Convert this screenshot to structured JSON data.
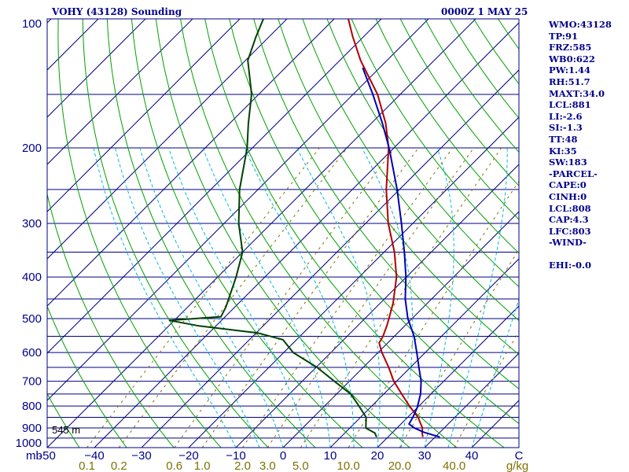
{
  "header": {
    "title": "VOHY (43128) Sounding",
    "valid_time": "0000Z  1 MAY 25"
  },
  "station_height_label": "545 m",
  "indices": [
    "WMO:43128",
    "TP:91",
    "FRZ:585",
    "WB0:622",
    "PW:1.44",
    "RH:51.7",
    "MAXT:34.0",
    "LCL:881",
    "LI:-2.6",
    "SI:-1.3",
    "TT:48",
    "KI:35",
    "SW:183",
    "-PARCEL-",
    "CAPE:0",
    "CINH:0",
    "LCL:808",
    "CAP:4.3",
    "LFC:803",
    "-WIND-",
    "",
    "EHI:-0.0"
  ],
  "colors": {
    "background": "#ffffff",
    "frame": "#000080",
    "isobar": "#000080",
    "isotherm": "#000080",
    "dry_adiabat": "#00a000",
    "moist_adiabat": "#00b8e0",
    "mixing_ratio": "#807000",
    "temperature": "#b00000",
    "dewpoint": "#004000",
    "parcel": "#0000b0",
    "text": "#00008b",
    "mixing_label": "#807000"
  },
  "chart_data": {
    "type": "skew-t log-p",
    "title": "VOHY (43128) Sounding",
    "time": "0000Z  1 MAY 25",
    "pressure_unit": "mb",
    "mixing_ratio_unit": "g/kg",
    "pressure_range": [
      1000,
      100
    ],
    "temperature_range_at_bottom": [
      -50,
      50
    ],
    "pressure_ticks": [
      100,
      200,
      300,
      400,
      500,
      600,
      700,
      800,
      900,
      1000
    ],
    "isobar_levels": [
      100,
      150,
      200,
      250,
      300,
      350,
      400,
      450,
      500,
      550,
      600,
      650,
      700,
      750,
      800,
      850,
      900,
      950,
      1000
    ],
    "temperature_ticks": [
      -50,
      -40,
      -30,
      -20,
      -10,
      0,
      10,
      20,
      30,
      40,
      50
    ],
    "temperature_tick_labels": [
      "-50",
      "−40",
      "−30",
      "−20",
      "−10",
      "0",
      "10",
      "20",
      "30",
      "40",
      "C"
    ],
    "mixing_ratio_ticks": [
      0.1,
      0.2,
      0.6,
      1.0,
      2.0,
      3.0,
      5.0,
      10.0,
      20.0,
      40.0
    ],
    "mixing_ratio_tick_labels": [
      "0.1",
      "0.2",
      "0.6",
      "1.0",
      "2.0",
      "3.0",
      "5.0",
      "10.0",
      "20.0",
      "40.0"
    ],
    "series": [
      {
        "key": "temperature",
        "points": [
          [
            945,
            27.4
          ],
          [
            925,
            26.4
          ],
          [
            900,
            25.4
          ],
          [
            850,
            22.2
          ],
          [
            800,
            18.0
          ],
          [
            750,
            13.8
          ],
          [
            700,
            9.4
          ],
          [
            650,
            5.4
          ],
          [
            600,
            0.8
          ],
          [
            570,
            -1.8
          ],
          [
            550,
            -2.4
          ],
          [
            520,
            -3.8
          ],
          [
            500,
            -4.9
          ],
          [
            460,
            -7.3
          ],
          [
            400,
            -12.1
          ],
          [
            350,
            -17.8
          ],
          [
            300,
            -25.2
          ],
          [
            250,
            -32.8
          ],
          [
            200,
            -41.1
          ],
          [
            175,
            -47.0
          ],
          [
            150,
            -54.8
          ],
          [
            125,
            -65.6
          ],
          [
            110,
            -72.3
          ],
          [
            100,
            -77.0
          ]
        ]
      },
      {
        "key": "dewpoint",
        "points": [
          [
            945,
            17.6
          ],
          [
            925,
            16.4
          ],
          [
            900,
            13.4
          ],
          [
            850,
            11.2
          ],
          [
            800,
            7.3
          ],
          [
            750,
            3.0
          ],
          [
            700,
            -3.2
          ],
          [
            650,
            -9.8
          ],
          [
            600,
            -18.0
          ],
          [
            560,
            -22.9
          ],
          [
            540,
            -29.7
          ],
          [
            520,
            -43.7
          ],
          [
            505,
            -51.0
          ],
          [
            495,
            -40.9
          ],
          [
            470,
            -41.9
          ],
          [
            400,
            -46.1
          ],
          [
            350,
            -50.0
          ],
          [
            300,
            -56.9
          ],
          [
            250,
            -63.9
          ],
          [
            200,
            -71.1
          ],
          [
            175,
            -76.1
          ],
          [
            150,
            -81.5
          ],
          [
            125,
            -89.5
          ],
          [
            110,
            -92.8
          ],
          [
            100,
            -95.0
          ]
        ]
      },
      {
        "key": "parcel",
        "points": [
          [
            945,
            31.0
          ],
          [
            920,
            26.5
          ],
          [
            900,
            23.7
          ],
          [
            881,
            21.7
          ],
          [
            850,
            21.1
          ],
          [
            808,
            20.0
          ],
          [
            750,
            17.8
          ],
          [
            700,
            15.2
          ],
          [
            650,
            11.8
          ],
          [
            600,
            8.2
          ],
          [
            550,
            4.2
          ],
          [
            500,
            -0.9
          ],
          [
            450,
            -5.6
          ],
          [
            400,
            -10.1
          ],
          [
            350,
            -15.7
          ],
          [
            300,
            -22.4
          ],
          [
            250,
            -30.5
          ],
          [
            200,
            -41.0
          ],
          [
            175,
            -47.7
          ],
          [
            150,
            -55.8
          ],
          [
            130,
            -63.6
          ]
        ]
      }
    ],
    "annotation": "545 m"
  }
}
